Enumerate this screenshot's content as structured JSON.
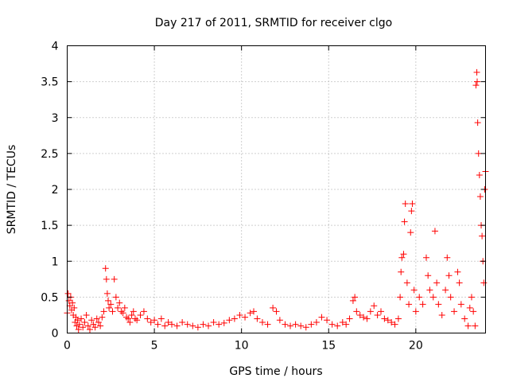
{
  "chart_data": {
    "type": "scatter",
    "title": "Day 217 of 2011, SRMTID for receiver clgo",
    "xlabel": "GPS time / hours",
    "ylabel": "SRMTID / TECUs",
    "xlim": [
      0,
      24
    ],
    "ylim": [
      0,
      4
    ],
    "xticks": [
      0,
      5,
      10,
      15,
      20
    ],
    "xtick_labels": [
      "0",
      "5",
      "10",
      "15",
      "20"
    ],
    "yticks": [
      0,
      0.5,
      1,
      1.5,
      2,
      2.5,
      3,
      3.5,
      4
    ],
    "ytick_labels": [
      "0",
      "0.5",
      "1",
      "1.5",
      "2",
      "2.5",
      "3",
      "3.5",
      "4"
    ],
    "grid": true,
    "marker": "+",
    "color": "#ff0000",
    "series": [
      {
        "name": "SRMTID",
        "points": [
          [
            0.0,
            0.28
          ],
          [
            0.05,
            0.55
          ],
          [
            0.1,
            0.45
          ],
          [
            0.15,
            0.38
          ],
          [
            0.2,
            0.5
          ],
          [
            0.25,
            0.32
          ],
          [
            0.3,
            0.42
          ],
          [
            0.35,
            0.25
          ],
          [
            0.4,
            0.35
          ],
          [
            0.45,
            0.15
          ],
          [
            0.5,
            0.22
          ],
          [
            0.55,
            0.1
          ],
          [
            0.6,
            0.18
          ],
          [
            0.65,
            0.05
          ],
          [
            0.7,
            0.12
          ],
          [
            0.8,
            0.2
          ],
          [
            0.9,
            0.08
          ],
          [
            1.0,
            0.15
          ],
          [
            1.1,
            0.25
          ],
          [
            1.2,
            0.1
          ],
          [
            1.3,
            0.05
          ],
          [
            1.4,
            0.18
          ],
          [
            1.5,
            0.12
          ],
          [
            1.6,
            0.08
          ],
          [
            1.7,
            0.2
          ],
          [
            1.8,
            0.15
          ],
          [
            1.9,
            0.1
          ],
          [
            2.0,
            0.22
          ],
          [
            2.1,
            0.3
          ],
          [
            2.2,
            0.9
          ],
          [
            2.25,
            0.75
          ],
          [
            2.3,
            0.55
          ],
          [
            2.35,
            0.45
          ],
          [
            2.4,
            0.35
          ],
          [
            2.5,
            0.4
          ],
          [
            2.6,
            0.3
          ],
          [
            2.7,
            0.75
          ],
          [
            2.8,
            0.5
          ],
          [
            2.9,
            0.35
          ],
          [
            3.0,
            0.42
          ],
          [
            3.1,
            0.3
          ],
          [
            3.2,
            0.28
          ],
          [
            3.3,
            0.35
          ],
          [
            3.4,
            0.22
          ],
          [
            3.5,
            0.2
          ],
          [
            3.6,
            0.15
          ],
          [
            3.7,
            0.25
          ],
          [
            3.8,
            0.3
          ],
          [
            3.9,
            0.2
          ],
          [
            4.0,
            0.18
          ],
          [
            4.2,
            0.25
          ],
          [
            4.4,
            0.3
          ],
          [
            4.6,
            0.2
          ],
          [
            4.8,
            0.15
          ],
          [
            5.0,
            0.18
          ],
          [
            5.2,
            0.12
          ],
          [
            5.4,
            0.2
          ],
          [
            5.6,
            0.1
          ],
          [
            5.8,
            0.15
          ],
          [
            6.0,
            0.12
          ],
          [
            6.3,
            0.1
          ],
          [
            6.6,
            0.15
          ],
          [
            6.9,
            0.12
          ],
          [
            7.2,
            0.1
          ],
          [
            7.5,
            0.08
          ],
          [
            7.8,
            0.12
          ],
          [
            8.1,
            0.1
          ],
          [
            8.4,
            0.15
          ],
          [
            8.7,
            0.12
          ],
          [
            9.0,
            0.14
          ],
          [
            9.3,
            0.18
          ],
          [
            9.6,
            0.2
          ],
          [
            9.9,
            0.25
          ],
          [
            10.2,
            0.22
          ],
          [
            10.5,
            0.28
          ],
          [
            10.7,
            0.3
          ],
          [
            10.9,
            0.2
          ],
          [
            11.2,
            0.15
          ],
          [
            11.5,
            0.12
          ],
          [
            11.8,
            0.35
          ],
          [
            12.0,
            0.3
          ],
          [
            12.2,
            0.18
          ],
          [
            12.5,
            0.12
          ],
          [
            12.8,
            0.1
          ],
          [
            13.1,
            0.12
          ],
          [
            13.4,
            0.1
          ],
          [
            13.7,
            0.08
          ],
          [
            14.0,
            0.12
          ],
          [
            14.3,
            0.15
          ],
          [
            14.6,
            0.22
          ],
          [
            14.9,
            0.18
          ],
          [
            15.2,
            0.12
          ],
          [
            15.5,
            0.1
          ],
          [
            15.8,
            0.15
          ],
          [
            16.0,
            0.12
          ],
          [
            16.2,
            0.2
          ],
          [
            16.4,
            0.45
          ],
          [
            16.5,
            0.5
          ],
          [
            16.6,
            0.3
          ],
          [
            16.8,
            0.25
          ],
          [
            17.0,
            0.22
          ],
          [
            17.2,
            0.2
          ],
          [
            17.4,
            0.3
          ],
          [
            17.6,
            0.38
          ],
          [
            17.8,
            0.25
          ],
          [
            18.0,
            0.3
          ],
          [
            18.2,
            0.2
          ],
          [
            18.4,
            0.18
          ],
          [
            18.6,
            0.15
          ],
          [
            18.8,
            0.12
          ],
          [
            19.0,
            0.2
          ],
          [
            19.1,
            0.5
          ],
          [
            19.15,
            0.85
          ],
          [
            19.2,
            1.05
          ],
          [
            19.3,
            1.1
          ],
          [
            19.35,
            1.55
          ],
          [
            19.4,
            1.8
          ],
          [
            19.5,
            0.7
          ],
          [
            19.6,
            0.4
          ],
          [
            19.7,
            1.4
          ],
          [
            19.75,
            1.7
          ],
          [
            19.8,
            1.8
          ],
          [
            19.9,
            0.6
          ],
          [
            20.0,
            0.3
          ],
          [
            20.2,
            0.5
          ],
          [
            20.4,
            0.4
          ],
          [
            20.6,
            1.05
          ],
          [
            20.7,
            0.8
          ],
          [
            20.8,
            0.6
          ],
          [
            21.0,
            0.5
          ],
          [
            21.1,
            1.42
          ],
          [
            21.2,
            0.7
          ],
          [
            21.3,
            0.4
          ],
          [
            21.5,
            0.25
          ],
          [
            21.7,
            0.6
          ],
          [
            21.8,
            1.05
          ],
          [
            21.9,
            0.8
          ],
          [
            22.0,
            0.5
          ],
          [
            22.2,
            0.3
          ],
          [
            22.4,
            0.85
          ],
          [
            22.5,
            0.7
          ],
          [
            22.6,
            0.4
          ],
          [
            22.8,
            0.2
          ],
          [
            23.0,
            0.1
          ],
          [
            23.1,
            0.35
          ],
          [
            23.2,
            0.5
          ],
          [
            23.3,
            0.3
          ],
          [
            23.4,
            0.1
          ],
          [
            23.45,
            3.45
          ],
          [
            23.5,
            3.63
          ],
          [
            23.52,
            3.5
          ],
          [
            23.55,
            2.93
          ],
          [
            23.6,
            2.5
          ],
          [
            23.65,
            2.2
          ],
          [
            23.7,
            1.9
          ],
          [
            23.75,
            1.5
          ],
          [
            23.8,
            1.35
          ],
          [
            23.85,
            1.0
          ],
          [
            23.9,
            0.7
          ],
          [
            23.95,
            2.0
          ],
          [
            24.0,
            2.25
          ]
        ]
      }
    ]
  }
}
